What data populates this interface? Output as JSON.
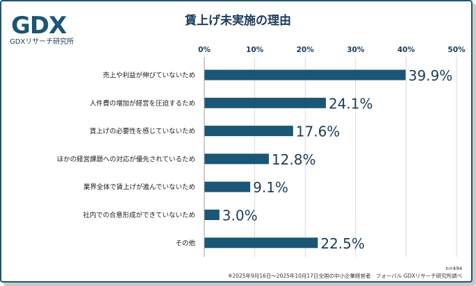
{
  "logo": {
    "text": "GDX",
    "subtitle": "GDXリサーチ研究所"
  },
  "chart_data": {
    "type": "bar",
    "orientation": "horizontal",
    "title": "賃上げ未実施の理由",
    "categories": [
      "売上や利益が伸びていないため",
      "人件費の増加が経営を圧迫するため",
      "賃上げの必要性を感じていないため",
      "ほかの経営課題への対応が優先されているため",
      "業界全体で賃上げが進んでいないため",
      "社内での合意形成ができていないため",
      "その他"
    ],
    "values": [
      39.9,
      24.1,
      17.6,
      12.8,
      9.1,
      3.0,
      22.5
    ],
    "value_labels": [
      "39.9%",
      "24.1%",
      "17.6%",
      "12.8%",
      "9.1%",
      "3.0%",
      "22.5%"
    ],
    "xlim": [
      0,
      50
    ],
    "ticks": [
      0,
      10,
      20,
      30,
      40,
      50
    ],
    "tick_labels": [
      "0%",
      "10%",
      "20%",
      "30%",
      "40%",
      "50%"
    ],
    "grid": true,
    "bar_color": "#1b5675"
  },
  "footer": {
    "n": "n=494",
    "note": "※2025年9月16日～2025年10月17日全国の中小企業経営者　フォーバル GDXリサーチ研究所調べ"
  }
}
